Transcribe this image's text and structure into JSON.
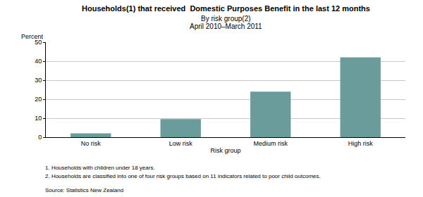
{
  "chart_data": {
    "type": "bar",
    "title": "Households(1) that received  Domestic Purposes Benefit in the last 12 months",
    "subtitle": [
      "By risk group(2)",
      "April 2010–March 2011"
    ],
    "y_label": "Percent",
    "x_label": "Risk group",
    "categories": [
      "No risk",
      "Low risk",
      "Medium risk",
      "High risk"
    ],
    "values": [
      2,
      9.5,
      24,
      42
    ],
    "color": "#6a9c9b",
    "ylim": [
      0,
      50
    ],
    "yticks": [
      0,
      10,
      20,
      30,
      40,
      50
    ],
    "grid": true,
    "notes": [
      "1. Households with children under 18 years.",
      "2. Households are classified into one of four risk groups based on 11 indicators related to poor child outcomes."
    ],
    "source": "Source: Statistics New Zealand"
  }
}
